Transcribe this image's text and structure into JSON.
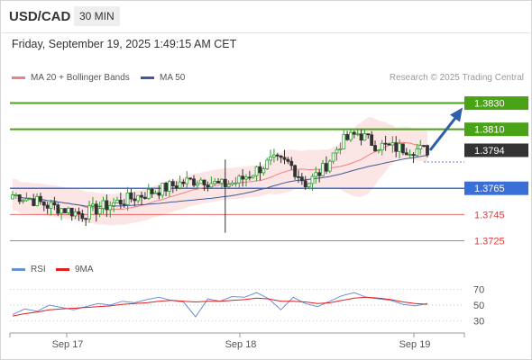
{
  "header": {
    "pair": "USD/CAD",
    "timeframe": "30 MIN"
  },
  "timestamp": "Friday, September 19, 2025 1:49:15 AM CET",
  "legend": {
    "ma20": "MA 20 + Bollinger Bands",
    "ma50": "MA 50",
    "credit": "Research © 2025 Trading Central"
  },
  "rsi_legend": {
    "rsi": "RSI",
    "ma9": "9MA"
  },
  "colors": {
    "green": "#4aa316",
    "blue": "#3a6fd8",
    "red": "#e03a3a",
    "dark": "#333333",
    "ma20": "#f08080",
    "ma50": "#3f5a99",
    "band": "#fbdcdc",
    "rsi": "#6b8fd6",
    "rsi_ma": "#e02020"
  },
  "chart_data": [
    {
      "type": "candlestick",
      "title": "USD/CAD",
      "x_ticks": [
        "Sep 17",
        "Sep 18",
        "Sep 19"
      ],
      "ylim": [
        1.3715,
        1.384
      ],
      "levels": [
        {
          "value": "1.3830",
          "role": "resistance",
          "color": "green",
          "boxed": true
        },
        {
          "value": "1.3810",
          "role": "resistance",
          "color": "green",
          "boxed": true
        },
        {
          "value": "1.3794",
          "role": "current price",
          "color": "dark",
          "boxed": true
        },
        {
          "value": "1.3765",
          "role": "pivot",
          "color": "blue",
          "boxed": true
        },
        {
          "value": "1.3745",
          "role": "support",
          "color": "red",
          "boxed": false
        },
        {
          "value": "1.3725",
          "role": "support",
          "color": "red",
          "boxed": false
        }
      ],
      "arrow": {
        "from": 1.3794,
        "to": 1.383,
        "direction": "up"
      },
      "trend_shape": [
        1.376,
        1.3757,
        1.3752,
        1.3749,
        1.3745,
        1.375,
        1.3754,
        1.3758,
        1.3762,
        1.3766,
        1.377,
        1.3772,
        1.3767,
        1.377,
        1.3778,
        1.3786,
        1.3784,
        1.3768,
        1.378,
        1.38,
        1.3807,
        1.3798,
        1.3796,
        1.3795,
        1.3794
      ]
    },
    {
      "type": "line",
      "title": "RSI",
      "ylim": [
        20,
        80
      ],
      "yticks": [
        "70",
        "50",
        "30"
      ],
      "series": [
        {
          "name": "RSI",
          "values": [
            38,
            45,
            42,
            50,
            47,
            44,
            48,
            52,
            50,
            55,
            53,
            57,
            60,
            56,
            54,
            35,
            58,
            55,
            61,
            60,
            66,
            58,
            44,
            60,
            52,
            48,
            55,
            62,
            66,
            60,
            58,
            56,
            51,
            49,
            52
          ]
        },
        {
          "name": "9MA",
          "values": [
            36,
            39,
            41,
            44,
            45,
            46,
            47,
            48,
            49,
            51,
            52,
            53,
            55,
            56,
            55,
            54,
            55,
            55,
            56,
            57,
            59,
            58,
            55,
            55,
            54,
            52,
            53,
            56,
            59,
            60,
            59,
            57,
            54,
            52,
            51
          ]
        }
      ]
    }
  ]
}
